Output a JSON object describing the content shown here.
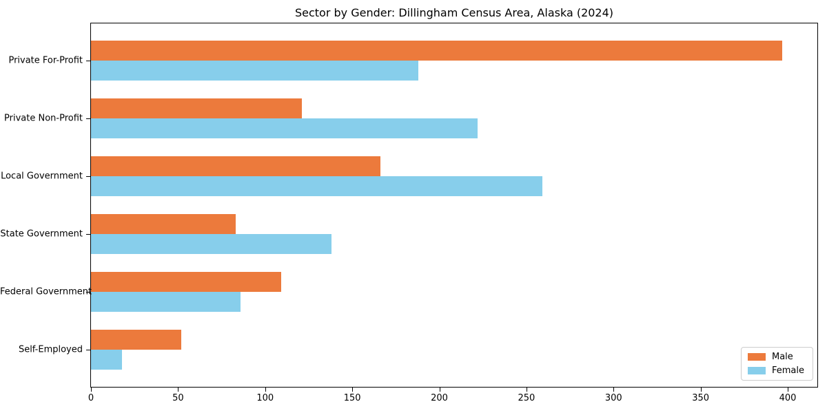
{
  "chart_data": {
    "type": "bar",
    "orientation": "horizontal",
    "title": "Sector by Gender: Dillingham Census Area, Alaska (2024)",
    "categories": [
      "Private For-Profit",
      "Private Non-Profit",
      "Local Government",
      "State Government",
      "Federal Government",
      "Self-Employed"
    ],
    "series": [
      {
        "name": "Male",
        "color": "#ec7a3c",
        "values": [
          397,
          121,
          166,
          83,
          109,
          52
        ]
      },
      {
        "name": "Female",
        "color": "#87ceeb",
        "values": [
          188,
          222,
          259,
          138,
          86,
          18
        ]
      }
    ],
    "xlabel": "",
    "ylabel": "",
    "xlim": [
      0,
      417
    ],
    "x_ticks": [
      0,
      50,
      100,
      150,
      200,
      250,
      300,
      350,
      400
    ],
    "legend_position": "lower right",
    "grid": false,
    "background_color": "#ffffff",
    "axis_color": "#000000"
  }
}
